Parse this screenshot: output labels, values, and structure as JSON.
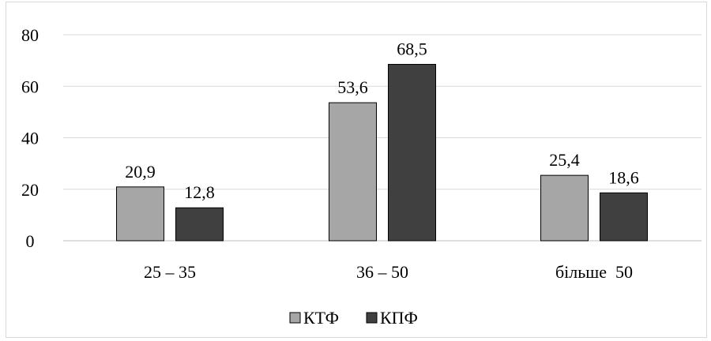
{
  "chart_data": {
    "type": "bar",
    "title": "",
    "xlabel": "",
    "ylabel": "",
    "categories": [
      "25 – 35",
      "36 – 50",
      "більше  50"
    ],
    "series": [
      {
        "name": "КТФ",
        "values": [
          20.9,
          53.6,
          25.4
        ],
        "labels": [
          "20,9",
          "53,6",
          "25,4"
        ],
        "color": "#a6a6a6"
      },
      {
        "name": "КПФ",
        "values": [
          12.8,
          68.5,
          18.6
        ],
        "labels": [
          "12,8",
          "68,5",
          "18,6"
        ],
        "color": "#404040"
      }
    ],
    "ylim": [
      0,
      80
    ],
    "yticks": [
      0,
      20,
      40,
      60,
      80
    ],
    "grid": true,
    "legend_position": "bottom"
  }
}
